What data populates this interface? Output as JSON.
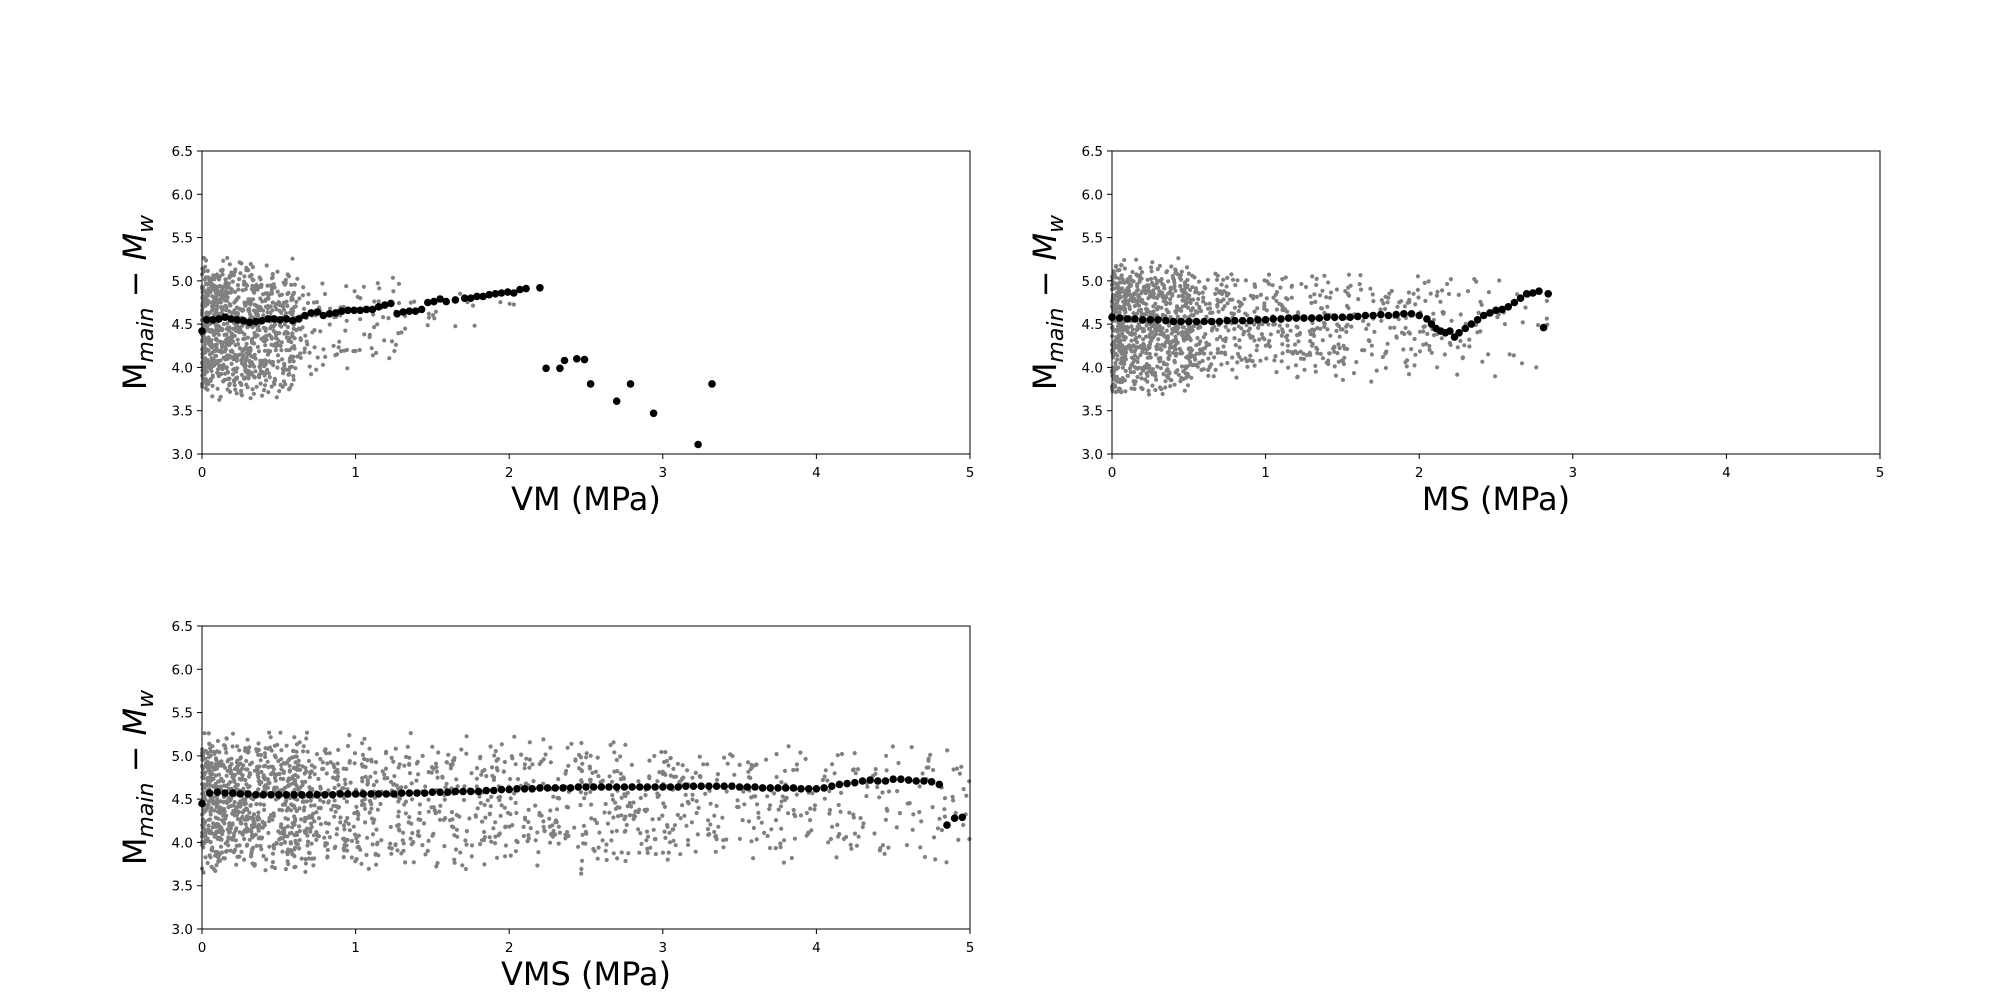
{
  "chart_data": [
    {
      "type": "scatter",
      "xlabel": "VM (MPa)",
      "ylabel": {
        "base": "M",
        "sub": "main",
        "sep": " − ",
        "var": "M",
        "var_sub": "w"
      },
      "xlim": [
        0,
        5
      ],
      "ylim": [
        3.0,
        6.5
      ],
      "x_ticks": [
        "0",
        "1",
        "2",
        "3",
        "4",
        "5"
      ],
      "y_ticks": [
        "3.0",
        "3.5",
        "4.0",
        "4.5",
        "5.0",
        "5.5",
        "6.0",
        "6.5"
      ],
      "grid": false,
      "series": [
        {
          "role": "individual events",
          "color": "#808080",
          "marker": "small dot",
          "cloud": [
            {
              "x_range": [
                0.0,
                0.6
              ],
              "y_range": [
                3.6,
                5.3
              ],
              "count": 900
            },
            {
              "x_range": [
                0.6,
                1.3
              ],
              "y_range": [
                3.9,
                5.1
              ],
              "count": 110
            },
            {
              "x_range": [
                1.3,
                2.2
              ],
              "y_range": [
                4.3,
                4.95
              ],
              "count": 18
            }
          ]
        },
        {
          "role": "binned mean",
          "color": "#000000",
          "marker": "large dot",
          "x": [
            0.0,
            0.03,
            0.07,
            0.11,
            0.15,
            0.19,
            0.23,
            0.27,
            0.31,
            0.35,
            0.39,
            0.43,
            0.47,
            0.51,
            0.55,
            0.59,
            0.63,
            0.67,
            0.71,
            0.75,
            0.79,
            0.83,
            0.87,
            0.91,
            0.95,
            0.99,
            1.03,
            1.07,
            1.11,
            1.15,
            1.19,
            1.23,
            1.27,
            1.31,
            1.35,
            1.39,
            1.43,
            1.47,
            1.51,
            1.55,
            1.59,
            1.65,
            1.71,
            1.75,
            1.79,
            1.83,
            1.87,
            1.91,
            1.95,
            1.99,
            2.03,
            2.07,
            2.11,
            2.2,
            2.24,
            2.33,
            2.36,
            2.44,
            2.49,
            2.53,
            2.7,
            2.79,
            2.94,
            3.23,
            3.32
          ],
          "y": [
            4.42,
            4.55,
            4.55,
            4.56,
            4.58,
            4.56,
            4.55,
            4.54,
            4.52,
            4.53,
            4.54,
            4.56,
            4.56,
            4.55,
            4.56,
            4.54,
            4.56,
            4.6,
            4.63,
            4.64,
            4.6,
            4.62,
            4.63,
            4.65,
            4.66,
            4.66,
            4.66,
            4.67,
            4.67,
            4.7,
            4.72,
            4.74,
            4.62,
            4.64,
            4.65,
            4.65,
            4.67,
            4.75,
            4.76,
            4.79,
            4.76,
            4.78,
            4.8,
            4.8,
            4.82,
            4.82,
            4.84,
            4.85,
            4.86,
            4.87,
            4.86,
            4.9,
            4.91,
            4.92,
            3.99,
            3.99,
            4.08,
            4.1,
            4.09,
            3.81,
            3.61,
            3.81,
            3.47,
            3.11,
            3.81
          ]
        }
      ]
    },
    {
      "type": "scatter",
      "xlabel": "MS (MPa)",
      "ylabel": {
        "base": "M",
        "sub": "main",
        "sep": " − ",
        "var": "M",
        "var_sub": "w"
      },
      "xlim": [
        0,
        5
      ],
      "ylim": [
        3.0,
        6.5
      ],
      "x_ticks": [
        "0",
        "1",
        "2",
        "3",
        "4",
        "5"
      ],
      "y_ticks": [
        "3.0",
        "3.5",
        "4.0",
        "4.5",
        "5.0",
        "5.5",
        "6.0",
        "6.5"
      ],
      "grid": false,
      "series": [
        {
          "role": "individual events",
          "color": "#808080",
          "marker": "small dot",
          "cloud": [
            {
              "x_range": [
                0.0,
                0.5
              ],
              "y_range": [
                3.6,
                5.3
              ],
              "count": 750
            },
            {
              "x_range": [
                0.5,
                2.1
              ],
              "y_range": [
                3.8,
                5.2
              ],
              "count": 520
            },
            {
              "x_range": [
                2.1,
                2.9
              ],
              "y_range": [
                3.8,
                5.1
              ],
              "count": 60
            }
          ]
        },
        {
          "role": "binned mean",
          "color": "#000000",
          "marker": "large dot",
          "x": [
            0.0,
            0.05,
            0.1,
            0.15,
            0.2,
            0.25,
            0.3,
            0.35,
            0.4,
            0.45,
            0.5,
            0.55,
            0.6,
            0.65,
            0.7,
            0.75,
            0.8,
            0.85,
            0.9,
            0.95,
            1.0,
            1.05,
            1.1,
            1.15,
            1.2,
            1.25,
            1.3,
            1.35,
            1.4,
            1.45,
            1.5,
            1.55,
            1.6,
            1.65,
            1.7,
            1.75,
            1.8,
            1.85,
            1.9,
            1.95,
            2.0,
            2.05,
            2.08,
            2.11,
            2.14,
            2.17,
            2.2,
            2.23,
            2.26,
            2.3,
            2.34,
            2.38,
            2.42,
            2.46,
            2.5,
            2.54,
            2.58,
            2.62,
            2.66,
            2.7,
            2.74,
            2.78,
            2.81,
            2.84
          ],
          "y": [
            4.58,
            4.57,
            4.56,
            4.56,
            4.55,
            4.55,
            4.55,
            4.54,
            4.53,
            4.53,
            4.53,
            4.53,
            4.53,
            4.53,
            4.53,
            4.54,
            4.54,
            4.54,
            4.54,
            4.55,
            4.55,
            4.56,
            4.56,
            4.57,
            4.57,
            4.57,
            4.57,
            4.57,
            4.58,
            4.58,
            4.58,
            4.58,
            4.59,
            4.6,
            4.6,
            4.61,
            4.6,
            4.61,
            4.62,
            4.62,
            4.6,
            4.56,
            4.5,
            4.45,
            4.42,
            4.4,
            4.42,
            4.35,
            4.4,
            4.45,
            4.5,
            4.55,
            4.6,
            4.63,
            4.66,
            4.67,
            4.7,
            4.75,
            4.8,
            4.85,
            4.86,
            4.88,
            4.46,
            4.85
          ]
        }
      ]
    },
    {
      "type": "scatter",
      "xlabel": "VMS (MPa)",
      "ylabel": {
        "base": "M",
        "sub": "main",
        "sep": " − ",
        "var": "M",
        "var_sub": "w"
      },
      "xlim": [
        0,
        5
      ],
      "ylim": [
        3.0,
        6.5
      ],
      "x_ticks": [
        "0",
        "1",
        "2",
        "3",
        "4",
        "5"
      ],
      "y_ticks": [
        "3.0",
        "3.5",
        "4.0",
        "4.5",
        "5.0",
        "5.5",
        "6.0",
        "6.5"
      ],
      "grid": false,
      "series": [
        {
          "role": "individual events",
          "color": "#808080",
          "marker": "small dot",
          "cloud": [
            {
              "x_range": [
                0.0,
                0.6
              ],
              "y_range": [
                3.6,
                5.3
              ],
              "count": 700
            },
            {
              "x_range": [
                0.6,
                3.0
              ],
              "y_range": [
                3.6,
                5.3
              ],
              "count": 800
            },
            {
              "x_range": [
                3.0,
                5.0
              ],
              "y_range": [
                3.7,
                5.2
              ],
              "count": 300
            }
          ]
        },
        {
          "role": "binned mean",
          "color": "#000000",
          "marker": "large dot",
          "x": [
            0.0,
            0.05,
            0.1,
            0.15,
            0.2,
            0.25,
            0.3,
            0.35,
            0.4,
            0.45,
            0.5,
            0.55,
            0.6,
            0.65,
            0.7,
            0.75,
            0.8,
            0.85,
            0.9,
            0.95,
            1.0,
            1.05,
            1.1,
            1.15,
            1.2,
            1.25,
            1.3,
            1.35,
            1.4,
            1.45,
            1.5,
            1.55,
            1.6,
            1.65,
            1.7,
            1.75,
            1.8,
            1.85,
            1.9,
            1.95,
            2.0,
            2.05,
            2.1,
            2.15,
            2.2,
            2.25,
            2.3,
            2.35,
            2.4,
            2.45,
            2.5,
            2.55,
            2.6,
            2.65,
            2.7,
            2.75,
            2.8,
            2.85,
            2.9,
            2.95,
            3.0,
            3.05,
            3.1,
            3.15,
            3.2,
            3.25,
            3.3,
            3.35,
            3.4,
            3.45,
            3.5,
            3.55,
            3.6,
            3.65,
            3.7,
            3.75,
            3.8,
            3.85,
            3.9,
            3.95,
            4.0,
            4.05,
            4.1,
            4.15,
            4.2,
            4.25,
            4.3,
            4.35,
            4.4,
            4.45,
            4.5,
            4.55,
            4.6,
            4.65,
            4.7,
            4.75,
            4.8,
            4.85,
            4.9,
            4.95
          ],
          "y": [
            4.45,
            4.57,
            4.58,
            4.57,
            4.57,
            4.56,
            4.56,
            4.55,
            4.55,
            4.55,
            4.55,
            4.55,
            4.55,
            4.55,
            4.55,
            4.55,
            4.55,
            4.55,
            4.56,
            4.56,
            4.56,
            4.56,
            4.56,
            4.56,
            4.56,
            4.56,
            4.57,
            4.57,
            4.57,
            4.57,
            4.58,
            4.58,
            4.58,
            4.59,
            4.59,
            4.59,
            4.59,
            4.6,
            4.6,
            4.61,
            4.61,
            4.62,
            4.62,
            4.62,
            4.63,
            4.63,
            4.63,
            4.63,
            4.63,
            4.64,
            4.64,
            4.64,
            4.64,
            4.64,
            4.64,
            4.64,
            4.64,
            4.64,
            4.64,
            4.64,
            4.64,
            4.64,
            4.64,
            4.65,
            4.65,
            4.65,
            4.65,
            4.65,
            4.65,
            4.65,
            4.64,
            4.64,
            4.64,
            4.63,
            4.63,
            4.63,
            4.63,
            4.63,
            4.62,
            4.62,
            4.62,
            4.63,
            4.65,
            4.67,
            4.68,
            4.69,
            4.71,
            4.72,
            4.71,
            4.71,
            4.73,
            4.73,
            4.72,
            4.71,
            4.71,
            4.7,
            4.67,
            4.2,
            4.28,
            4.29
          ]
        }
      ]
    }
  ]
}
